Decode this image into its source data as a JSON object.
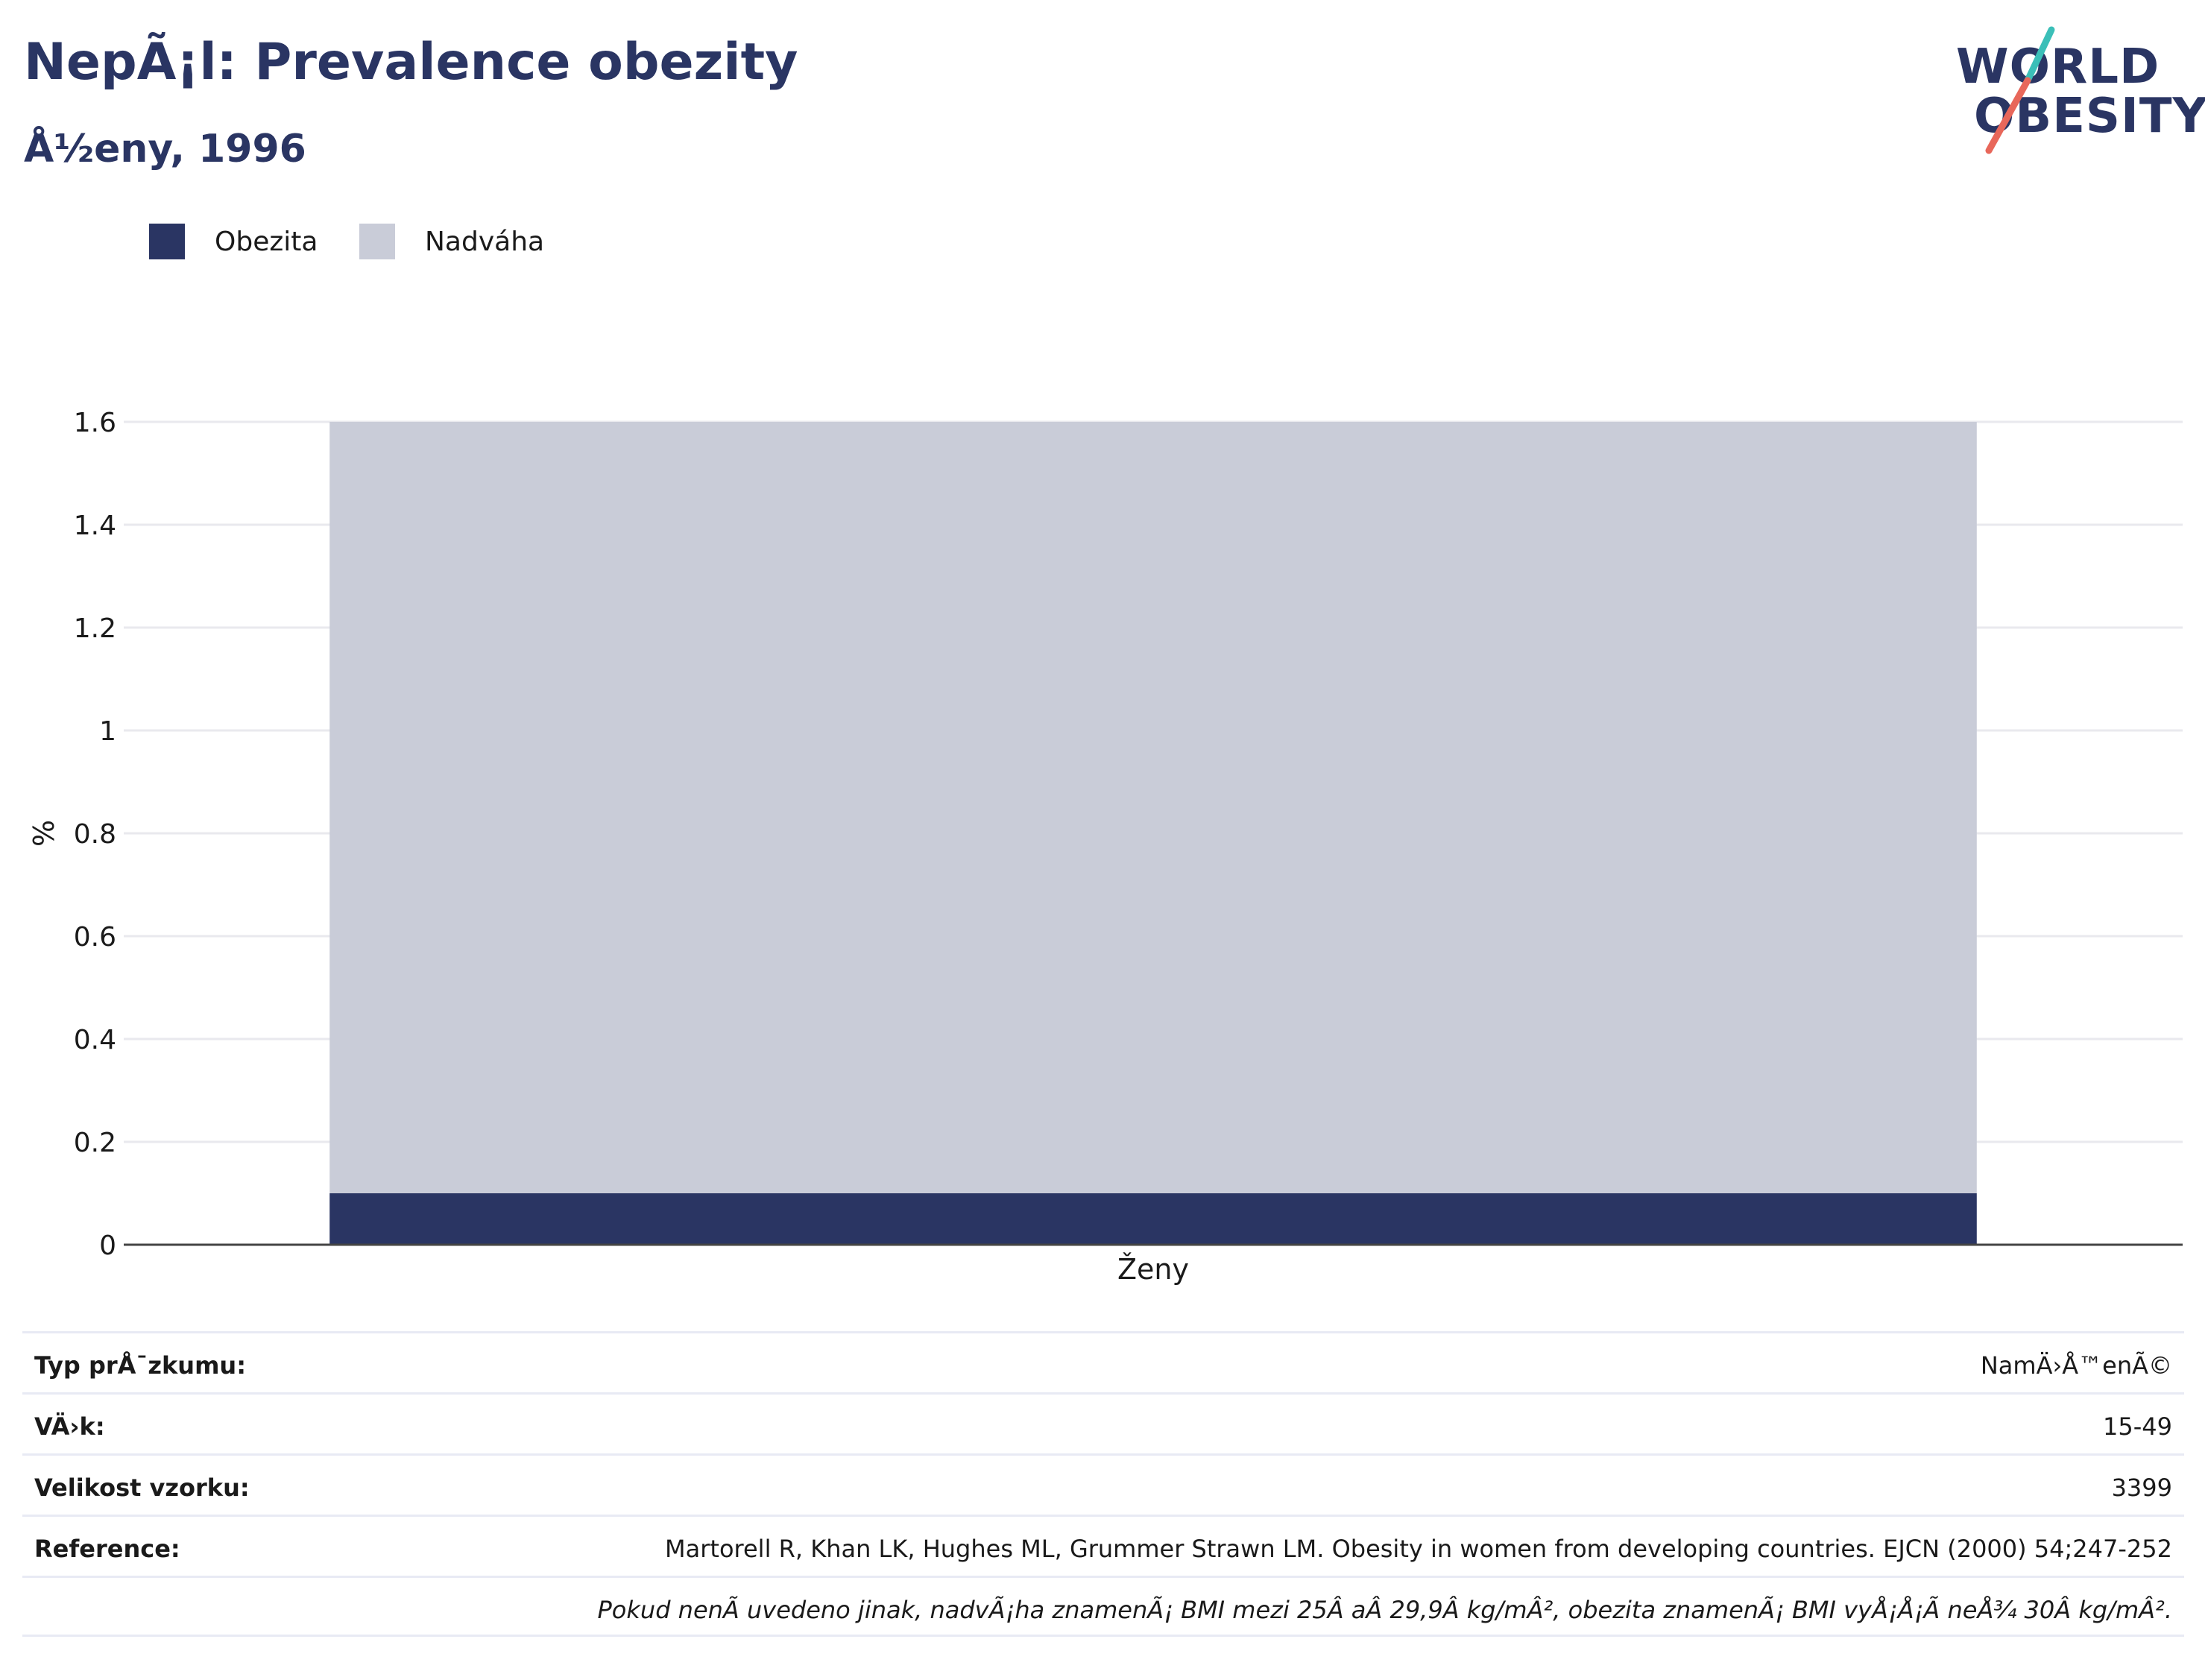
{
  "header": {
    "title": "NepÃ¡l: Prevalence obezity",
    "subtitle": "Å½eny, 1996"
  },
  "logo": {
    "line1": "WORLD",
    "line2": "OBESITY",
    "colors": {
      "text": "#2a3563",
      "accent_teal": "#3bbfb8",
      "accent_coral": "#e8675a"
    }
  },
  "legend": {
    "items": [
      {
        "label": "Obezita",
        "color": "#2a3563"
      },
      {
        "label": "Nadváha",
        "color": "#c9ccd8"
      }
    ]
  },
  "chart_data": {
    "type": "bar",
    "stacked": true,
    "categories": [
      "Ženy"
    ],
    "series": [
      {
        "name": "Obezita",
        "values": [
          0.1
        ],
        "color": "#2a3563"
      },
      {
        "name": "Nadváha",
        "values": [
          1.5
        ],
        "color": "#c9ccd8"
      }
    ],
    "ylabel": "%",
    "ylim": [
      0,
      1.6
    ],
    "yticks": [
      "0",
      "0.2",
      "0.4",
      "0.6",
      "0.8",
      "1",
      "1.2",
      "1.4",
      "1.6"
    ],
    "grid": true,
    "legend_position": "top-left"
  },
  "info_table": {
    "rows": [
      {
        "key": "Typ prÅ¯zkumu:",
        "value": "NamÄ›Å™enÃ©"
      },
      {
        "key": "VÄ›k:",
        "value": "15-49"
      },
      {
        "key": "Velikost vzorku:",
        "value": "3399"
      },
      {
        "key": "Reference:",
        "value": "Martorell R, Khan LK, Hughes ML, Grummer Strawn LM. Obesity in women from developing countries. EJCN (2000) 54;247-252"
      }
    ],
    "note": "Pokud nenÃ uvedeno jinak, nadvÃ¡ha znamenÃ¡ BMI mezi 25Â aÂ 29,9Â kg/mÂ², obezita znamenÃ¡ BMI vyÅ¡Å¡Ã neÅ¾ 30Â kg/mÂ²."
  }
}
